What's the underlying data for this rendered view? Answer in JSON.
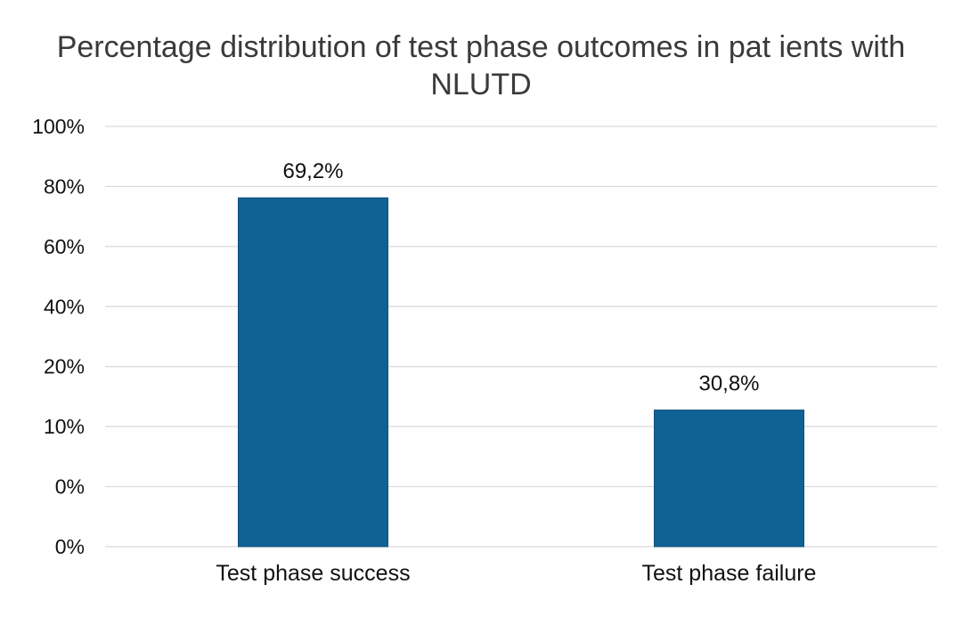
{
  "chart_data": {
    "type": "bar",
    "title": "Percentage distribution of test phase outcomes in pat ients with NLUTD",
    "categories": [
      "Test phase success",
      "Test phase failure"
    ],
    "values": [
      69.2,
      30.8
    ],
    "data_labels": [
      "69,2%",
      "30,8%"
    ],
    "bar_levels": [
      0.83,
      0.325
    ],
    "y_tick_labels": [
      "0%",
      "0%",
      "10%",
      "20%",
      "40%",
      "60%",
      "80%",
      "100%"
    ],
    "xlabel": "",
    "ylabel": "",
    "grid": true,
    "legend": "none",
    "colors": {
      "bar": "#106295",
      "grid": "#d9d9d9",
      "text": "#111111",
      "title": "#3a3a3a"
    }
  }
}
